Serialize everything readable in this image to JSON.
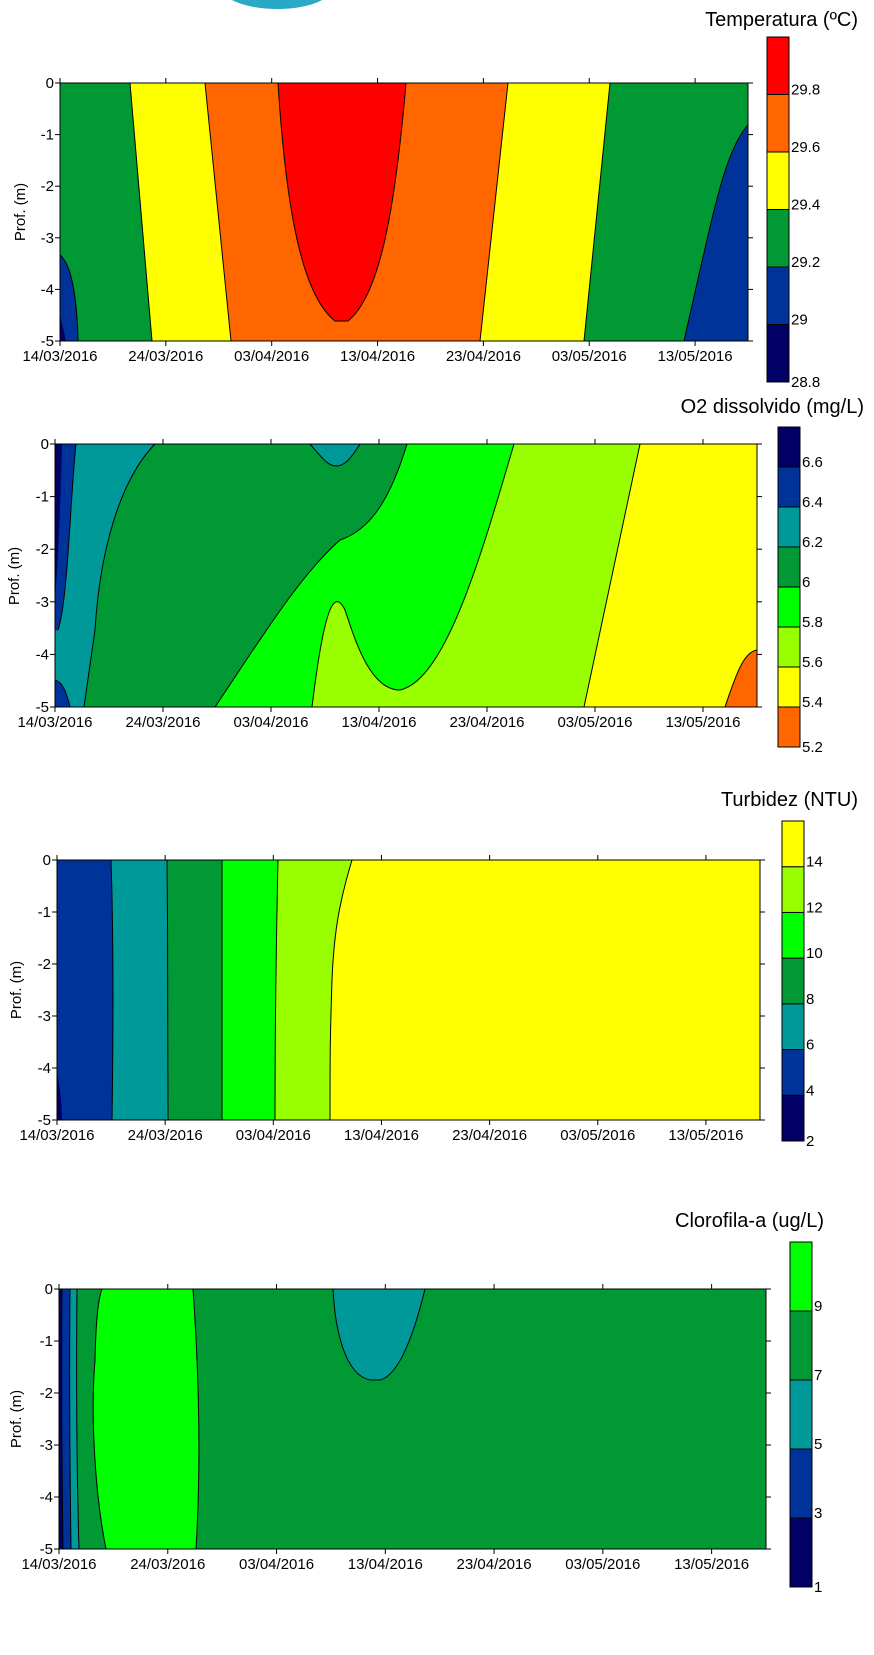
{
  "colors": {
    "navy": "#000066",
    "blue": "#003399",
    "teal": "#009999",
    "darkgreen": "#009933",
    "green": "#00ff00",
    "lime": "#99ff00",
    "yellow": "#ffff00",
    "orange": "#ff6600",
    "red": "#ff0000"
  },
  "chart_data": [
    {
      "type": "heatmap",
      "title": "Temperatura (ºC)",
      "ylabel": "Prof. (m)",
      "xlabel": "",
      "x_ticks": [
        "14/03/2016",
        "24/03/2016",
        "03/04/2016",
        "13/04/2016",
        "23/04/2016",
        "03/05/2016",
        "13/05/2016"
      ],
      "y_ticks": [
        "0",
        "-1",
        "-2",
        "-3",
        "-4",
        "-5"
      ],
      "ylim": [
        -5,
        0
      ],
      "colorbar": {
        "levels": [
          "28.8",
          "29",
          "29.2",
          "29.4",
          "29.6",
          "29.8"
        ],
        "colors": [
          "navy",
          "blue",
          "darkgreen",
          "yellow",
          "orange",
          "red"
        ]
      },
      "regions": [
        {
          "color": "darkgreen",
          "min": 29.2,
          "max": 29.4,
          "where": "14/03 to ~22/03 and ~01/05 to ~11/05"
        },
        {
          "color": "yellow",
          "min": 29.4,
          "max": 29.6,
          "where": "~20/03 to ~27/03 and ~22/04 to ~01/05"
        },
        {
          "color": "orange",
          "min": 29.6,
          "max": 29.8,
          "where": "~27/03 to ~23/04"
        },
        {
          "color": "red",
          "min": 29.8,
          "max": 30.0,
          "where": "~03/04 to ~14/04, surface to -4.6 m"
        },
        {
          "color": "blue",
          "min": 29.0,
          "max": 29.2,
          "where": "~10/05 to 16/05, below -1 m; 14/03 bottom"
        }
      ]
    },
    {
      "type": "heatmap",
      "title": "O2 dissolvido (mg/L)",
      "ylabel": "Prof. (m)",
      "xlabel": "",
      "x_ticks": [
        "14/03/2016",
        "24/03/2016",
        "03/04/2016",
        "13/04/2016",
        "23/04/2016",
        "03/05/2016",
        "13/05/2016"
      ],
      "y_ticks": [
        "0",
        "-1",
        "-2",
        "-3",
        "-4",
        "-5"
      ],
      "ylim": [
        -5,
        0
      ],
      "colorbar": {
        "levels": [
          "5.2",
          "5.4",
          "5.6",
          "5.8",
          "6",
          "6.2",
          "6.4",
          "6.6"
        ],
        "colors": [
          "orange",
          "yellow",
          "lime",
          "green",
          "darkgreen",
          "teal",
          "blue",
          "navy"
        ]
      },
      "regions": [
        {
          "color": "navy",
          "min": 6.6,
          "max": 6.8,
          "where": "14/03 surface band"
        },
        {
          "color": "teal",
          "min": 6.2,
          "max": 6.4,
          "where": "~15/03 to ~22/03"
        },
        {
          "color": "darkgreen",
          "min": 6.0,
          "max": 6.2,
          "where": "~17/03 to ~12/04"
        },
        {
          "color": "green",
          "min": 5.8,
          "max": 6.0,
          "where": "~05/04 to ~24/04"
        },
        {
          "color": "lime",
          "min": 5.6,
          "max": 5.8,
          "where": "~09/04 to ~05/05"
        },
        {
          "color": "yellow",
          "min": 5.4,
          "max": 5.6,
          "where": "~01/05 to 16/05"
        },
        {
          "color": "orange",
          "min": 5.2,
          "max": 5.4,
          "where": "~14/05 to 16/05, below -3.9 m"
        }
      ]
    },
    {
      "type": "heatmap",
      "title": "Turbidez (NTU)",
      "ylabel": "Prof. (m)",
      "xlabel": "",
      "x_ticks": [
        "14/03/2016",
        "24/03/2016",
        "03/04/2016",
        "13/04/2016",
        "23/04/2016",
        "03/05/2016",
        "13/05/2016"
      ],
      "y_ticks": [
        "0",
        "-1",
        "-2",
        "-3",
        "-4",
        "-5"
      ],
      "ylim": [
        -5,
        0
      ],
      "colorbar": {
        "levels": [
          "2",
          "4",
          "6",
          "8",
          "10",
          "12",
          "14"
        ],
        "colors": [
          "navy",
          "blue",
          "teal",
          "darkgreen",
          "green",
          "lime",
          "yellow"
        ]
      },
      "regions": [
        {
          "color": "blue",
          "min": 4,
          "max": 6,
          "where": "14/03 to ~19/03"
        },
        {
          "color": "teal",
          "min": 6,
          "max": 8,
          "where": "~19/03 to ~24/03"
        },
        {
          "color": "darkgreen",
          "min": 8,
          "max": 10,
          "where": "~24/03 to ~29/03"
        },
        {
          "color": "green",
          "min": 10,
          "max": 12,
          "where": "~29/03 to ~03/04"
        },
        {
          "color": "lime",
          "min": 12,
          "max": 14,
          "where": "~03/04 to ~09/04"
        },
        {
          "color": "yellow",
          "min": 14,
          "max": 16,
          "where": "~09/04 to 16/05"
        }
      ]
    },
    {
      "type": "heatmap",
      "title": "Clorofila-a (ug/L)",
      "ylabel": "Prof. (m)",
      "xlabel": "",
      "x_ticks": [
        "14/03/2016",
        "24/03/2016",
        "03/04/2016",
        "13/04/2016",
        "23/04/2016",
        "03/05/2016",
        "13/05/2016"
      ],
      "y_ticks": [
        "0",
        "-1",
        "-2",
        "-3",
        "-4",
        "-5"
      ],
      "ylim": [
        -5,
        0
      ],
      "colorbar": {
        "levels": [
          "1",
          "3",
          "5",
          "7",
          "9"
        ],
        "colors": [
          "navy",
          "blue",
          "teal",
          "darkgreen",
          "green"
        ]
      },
      "regions": [
        {
          "color": "navy",
          "min": 1,
          "max": 3,
          "where": "14/03 thin band"
        },
        {
          "color": "blue",
          "min": 3,
          "max": 5,
          "where": "~15/03"
        },
        {
          "color": "teal",
          "min": 5,
          "max": 7,
          "where": "~15/03 and ~10/04 to ~15/04 above -1.7 m"
        },
        {
          "color": "green",
          "min": 9,
          "max": 11,
          "where": "~17/03 to ~26/03"
        },
        {
          "color": "darkgreen",
          "min": 7,
          "max": 9,
          "where": "remaining area"
        }
      ]
    }
  ]
}
